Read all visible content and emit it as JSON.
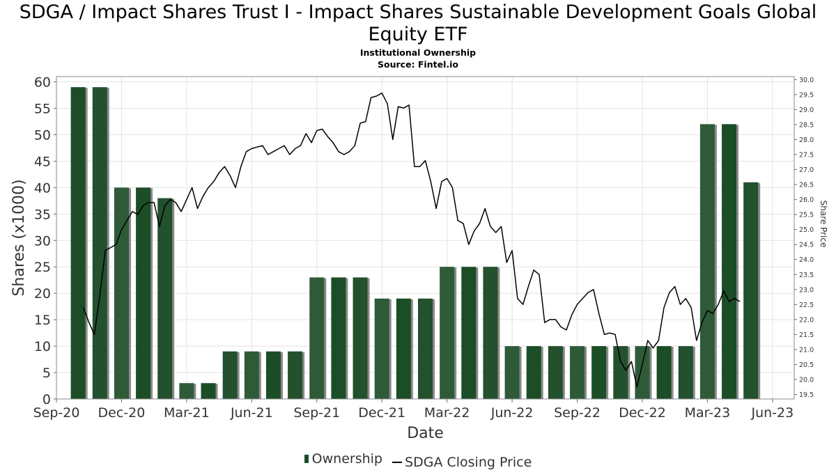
{
  "chart_data": {
    "type": "bar",
    "title": "SDGA / Impact Shares Trust I - Impact Shares Sustainable Development Goals Global Equity ETF",
    "subtitle": "Institutional Ownership",
    "source": "Source: Fintel.io",
    "xlabel": "Date",
    "ylabel": "Shares (x1000)",
    "y2label": "Share Price",
    "ylim": [
      0,
      61
    ],
    "y2lim": [
      19.35,
      30.1
    ],
    "yticks": [
      0,
      5,
      10,
      15,
      20,
      25,
      30,
      35,
      40,
      45,
      50,
      55,
      60
    ],
    "y2ticks": [
      "19.5",
      "20.0",
      "20.5",
      "21.0",
      "21.5",
      "22.0",
      "22.5",
      "23.0",
      "23.5",
      "24.0",
      "24.5",
      "25.0",
      "25.5",
      "26.0",
      "26.5",
      "27.0",
      "27.5",
      "28.0",
      "28.5",
      "29.0",
      "29.5",
      "30.0"
    ],
    "xtick_labels": [
      "Sep-20",
      "Dec-20",
      "Mar-21",
      "Jun-21",
      "Sep-21",
      "Dec-21",
      "Mar-22",
      "Jun-22",
      "Sep-22",
      "Dec-22",
      "Mar-23",
      "Jun-23"
    ],
    "xtick_positions": [
      0,
      3,
      6,
      9,
      12,
      15,
      18,
      21,
      24,
      27,
      30,
      33
    ],
    "grid": true,
    "legend_position": "bottom-center",
    "series": [
      {
        "name": "Ownership",
        "kind": "bar",
        "color": "#1b4d26",
        "x": [
          1,
          2,
          3,
          4,
          5,
          6,
          7,
          8,
          9,
          10,
          11,
          12,
          13,
          14,
          15,
          16,
          17,
          18,
          19,
          20,
          21,
          22,
          23,
          24,
          25,
          26,
          27,
          28,
          29,
          30,
          31,
          32
        ],
        "values": [
          59,
          59,
          40,
          40,
          38,
          3,
          3,
          9,
          9,
          9,
          9,
          23,
          23,
          23,
          19,
          19,
          19,
          25,
          25,
          25,
          10,
          10,
          10,
          10,
          10,
          10,
          10,
          10,
          10,
          52,
          52,
          41
        ]
      },
      {
        "name": "SDGA Closing Price",
        "kind": "line",
        "color": "#000000",
        "points": [
          [
            1.25,
            22.4
          ],
          [
            1.5,
            21.9
          ],
          [
            1.75,
            21.5
          ],
          [
            2.0,
            22.8
          ],
          [
            2.25,
            24.3
          ],
          [
            2.5,
            24.4
          ],
          [
            2.75,
            24.5
          ],
          [
            3.0,
            25.0
          ],
          [
            3.25,
            25.3
          ],
          [
            3.5,
            25.6
          ],
          [
            3.75,
            25.5
          ],
          [
            4.0,
            25.8
          ],
          [
            4.25,
            25.9
          ],
          [
            4.5,
            25.9
          ],
          [
            4.75,
            25.1
          ],
          [
            5.0,
            25.8
          ],
          [
            5.25,
            26.0
          ],
          [
            5.5,
            25.9
          ],
          [
            5.75,
            25.6
          ],
          [
            6.0,
            26.0
          ],
          [
            6.25,
            26.4
          ],
          [
            6.5,
            25.7
          ],
          [
            6.75,
            26.1
          ],
          [
            7.0,
            26.4
          ],
          [
            7.25,
            26.6
          ],
          [
            7.5,
            26.9
          ],
          [
            7.75,
            27.1
          ],
          [
            8.0,
            26.8
          ],
          [
            8.25,
            26.4
          ],
          [
            8.5,
            27.1
          ],
          [
            8.75,
            27.6
          ],
          [
            9.0,
            27.7
          ],
          [
            9.25,
            27.75
          ],
          [
            9.5,
            27.8
          ],
          [
            9.75,
            27.5
          ],
          [
            10.0,
            27.6
          ],
          [
            10.25,
            27.7
          ],
          [
            10.5,
            27.8
          ],
          [
            10.75,
            27.5
          ],
          [
            11.0,
            27.7
          ],
          [
            11.25,
            27.8
          ],
          [
            11.5,
            28.2
          ],
          [
            11.75,
            27.9
          ],
          [
            12.0,
            28.3
          ],
          [
            12.25,
            28.35
          ],
          [
            12.5,
            28.1
          ],
          [
            12.75,
            27.9
          ],
          [
            13.0,
            27.6
          ],
          [
            13.25,
            27.5
          ],
          [
            13.5,
            27.6
          ],
          [
            13.75,
            27.8
          ],
          [
            14.0,
            28.55
          ],
          [
            14.25,
            28.6
          ],
          [
            14.5,
            29.4
          ],
          [
            14.75,
            29.45
          ],
          [
            15.0,
            29.55
          ],
          [
            15.25,
            29.2
          ],
          [
            15.5,
            28.0
          ],
          [
            15.75,
            29.1
          ],
          [
            16.0,
            29.05
          ],
          [
            16.25,
            29.15
          ],
          [
            16.5,
            27.1
          ],
          [
            16.75,
            27.1
          ],
          [
            17.0,
            27.3
          ],
          [
            17.25,
            26.6
          ],
          [
            17.5,
            25.7
          ],
          [
            17.75,
            26.6
          ],
          [
            18.0,
            26.7
          ],
          [
            18.25,
            26.4
          ],
          [
            18.5,
            25.3
          ],
          [
            18.75,
            25.2
          ],
          [
            19.0,
            24.5
          ],
          [
            19.25,
            24.95
          ],
          [
            19.5,
            25.2
          ],
          [
            19.75,
            25.7
          ],
          [
            20.0,
            25.1
          ],
          [
            20.25,
            24.9
          ],
          [
            20.5,
            25.1
          ],
          [
            20.75,
            23.9
          ],
          [
            21.0,
            24.3
          ],
          [
            21.25,
            22.7
          ],
          [
            21.5,
            22.5
          ],
          [
            21.75,
            23.1
          ],
          [
            22.0,
            23.65
          ],
          [
            22.25,
            23.5
          ],
          [
            22.5,
            21.9
          ],
          [
            22.75,
            22.0
          ],
          [
            23.0,
            22.0
          ],
          [
            23.25,
            21.75
          ],
          [
            23.5,
            21.65
          ],
          [
            23.75,
            22.15
          ],
          [
            24.0,
            22.5
          ],
          [
            24.25,
            22.7
          ],
          [
            24.5,
            22.9
          ],
          [
            24.75,
            23.0
          ],
          [
            25.0,
            22.2
          ],
          [
            25.25,
            21.5
          ],
          [
            25.5,
            21.55
          ],
          [
            25.75,
            21.5
          ],
          [
            26.0,
            20.6
          ],
          [
            26.25,
            20.3
          ],
          [
            26.5,
            20.6
          ],
          [
            26.75,
            19.75
          ],
          [
            27.0,
            20.5
          ],
          [
            27.25,
            21.3
          ],
          [
            27.5,
            21.05
          ],
          [
            27.75,
            21.3
          ],
          [
            28.0,
            22.4
          ],
          [
            28.25,
            22.9
          ],
          [
            28.5,
            23.1
          ],
          [
            28.75,
            22.5
          ],
          [
            29.0,
            22.7
          ],
          [
            29.25,
            22.4
          ],
          [
            29.5,
            21.3
          ],
          [
            29.75,
            21.9
          ],
          [
            30.0,
            22.3
          ],
          [
            30.25,
            22.2
          ],
          [
            30.5,
            22.5
          ],
          [
            30.75,
            22.95
          ],
          [
            31.0,
            22.6
          ],
          [
            31.25,
            22.7
          ],
          [
            31.5,
            22.6
          ]
        ]
      }
    ]
  }
}
